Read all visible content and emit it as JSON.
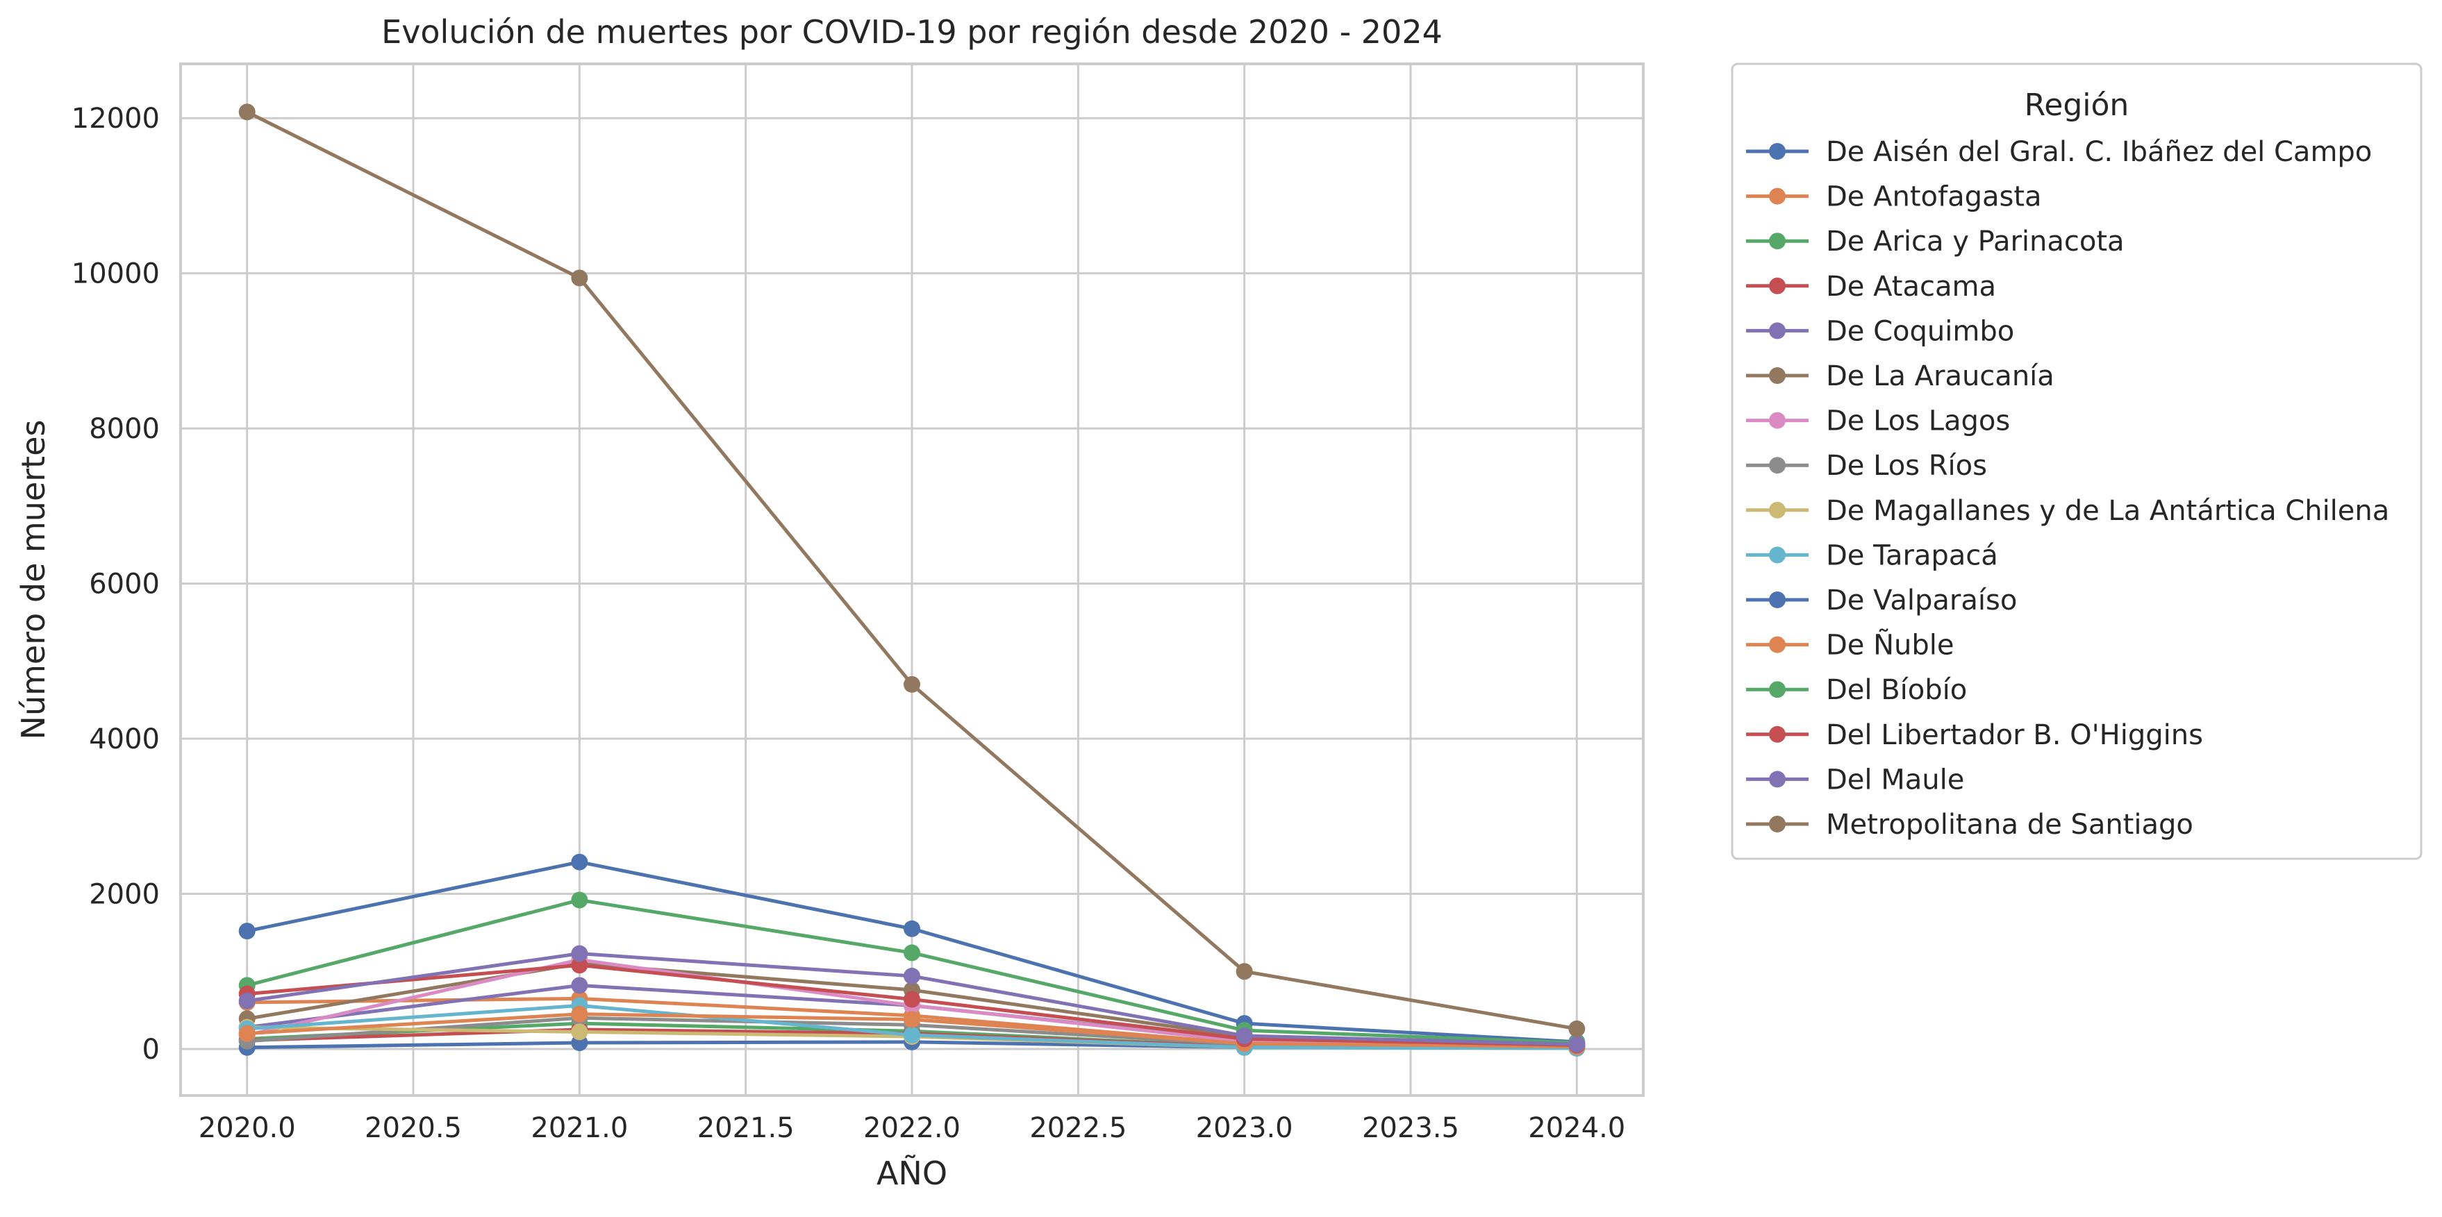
{
  "chart_data": {
    "type": "line",
    "title": "Evolución de muertes por COVID-19 por región desde 2020 - 2024",
    "xlabel": "AÑO",
    "ylabel": "Número de muertes",
    "xlim": [
      2019.8,
      2024.2
    ],
    "ylim": [
      -600,
      12700
    ],
    "xticks": [
      2020.0,
      2020.5,
      2021.0,
      2021.5,
      2022.0,
      2022.5,
      2023.0,
      2023.5,
      2024.0
    ],
    "xtick_labels": [
      "2020.0",
      "2020.5",
      "2021.0",
      "2021.5",
      "2022.0",
      "2022.5",
      "2023.0",
      "2023.5",
      "2024.0"
    ],
    "yticks": [
      0,
      2000,
      4000,
      6000,
      8000,
      10000,
      12000
    ],
    "ytick_labels": [
      "0",
      "2000",
      "4000",
      "6000",
      "8000",
      "10000",
      "12000"
    ],
    "grid": true,
    "legend_title": "Región",
    "legend_position": "outside-right-top",
    "x": [
      2020,
      2021,
      2022,
      2023,
      2024
    ],
    "series": [
      {
        "name": "De Aisén del Gral. C. Ibáñez del Campo",
        "color": "#4c72b0",
        "values": [
          20,
          80,
          90,
          20,
          10
        ]
      },
      {
        "name": "De Antofagasta",
        "color": "#dd8452",
        "values": [
          600,
          650,
          430,
          70,
          30
        ]
      },
      {
        "name": "De Arica y Parinacota",
        "color": "#55a868",
        "values": [
          130,
          330,
          230,
          30,
          10
        ]
      },
      {
        "name": "De Atacama",
        "color": "#c44e52",
        "values": [
          110,
          250,
          200,
          30,
          10
        ]
      },
      {
        "name": "De Coquimbo",
        "color": "#8172b3",
        "values": [
          280,
          820,
          560,
          110,
          40
        ]
      },
      {
        "name": "De La Araucanía",
        "color": "#937860",
        "values": [
          390,
          1100,
          760,
          160,
          60
        ]
      },
      {
        "name": "De Los Lagos",
        "color": "#da8bc3",
        "values": [
          180,
          1150,
          560,
          100,
          40
        ]
      },
      {
        "name": "De Los Ríos",
        "color": "#8c8c8c",
        "values": [
          100,
          400,
          310,
          60,
          20
        ]
      },
      {
        "name": "De Magallanes y de La Antártica Chilena",
        "color": "#ccb974",
        "values": [
          280,
          220,
          160,
          20,
          10
        ]
      },
      {
        "name": "De Tarapacá",
        "color": "#64b5cd",
        "values": [
          260,
          560,
          180,
          20,
          10
        ]
      },
      {
        "name": "De Valparaíso",
        "color": "#4c72b0",
        "values": [
          1520,
          2410,
          1550,
          330,
          90
        ]
      },
      {
        "name": "De Ñuble",
        "color": "#dd8452",
        "values": [
          200,
          450,
          380,
          70,
          30
        ]
      },
      {
        "name": "Del Bíobío",
        "color": "#55a868",
        "values": [
          820,
          1920,
          1240,
          240,
          80
        ]
      },
      {
        "name": "Del Libertador B. O'Higgins",
        "color": "#c44e52",
        "values": [
          710,
          1080,
          640,
          130,
          50
        ]
      },
      {
        "name": "Del Maule",
        "color": "#8172b3",
        "values": [
          620,
          1230,
          940,
          170,
          60
        ]
      },
      {
        "name": "Metropolitana de Santiago",
        "color": "#937860",
        "values": [
          12080,
          9940,
          4700,
          1000,
          260
        ]
      }
    ]
  }
}
